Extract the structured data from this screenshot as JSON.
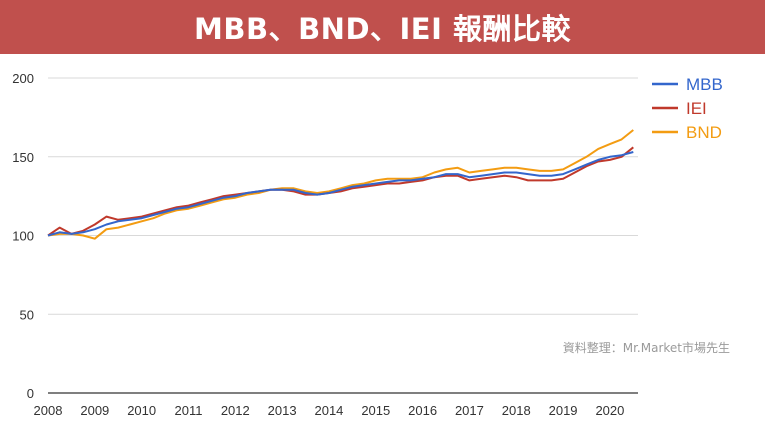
{
  "banner": {
    "title": "MBB、BND、IEI 報酬比較"
  },
  "source_note": "資料整理：Mr.Market市場先生",
  "colors": {
    "banner": "#c0504d",
    "MBB": "#3366cc",
    "IEI": "#c0392b",
    "BND": "#f39c12",
    "grid": "#d9d9d9"
  },
  "chart_data": {
    "type": "line",
    "title": "MBB、BND、IEI 報酬比較",
    "xlabel": "",
    "ylabel": "",
    "xlim": [
      2008.0,
      2020.6
    ],
    "ylim": [
      0,
      200
    ],
    "y_ticks": [
      0,
      50,
      100,
      150,
      200
    ],
    "x_ticks": [
      "2008",
      "2009",
      "2010",
      "2011",
      "2012",
      "2013",
      "2014",
      "2015",
      "2016",
      "2017",
      "2018",
      "2019",
      "2020"
    ],
    "grid": true,
    "legend_position": "top-right",
    "series": [
      {
        "name": "MBB",
        "x": [
          2008.0,
          2008.25,
          2008.5,
          2008.75,
          2009.0,
          2009.25,
          2009.5,
          2009.75,
          2010.0,
          2010.25,
          2010.5,
          2010.75,
          2011.0,
          2011.25,
          2011.5,
          2011.75,
          2012.0,
          2012.25,
          2012.5,
          2012.75,
          2013.0,
          2013.25,
          2013.5,
          2013.75,
          2014.0,
          2014.25,
          2014.5,
          2014.75,
          2015.0,
          2015.25,
          2015.5,
          2015.75,
          2016.0,
          2016.25,
          2016.5,
          2016.75,
          2017.0,
          2017.25,
          2017.5,
          2017.75,
          2018.0,
          2018.25,
          2018.5,
          2018.75,
          2019.0,
          2019.25,
          2019.5,
          2019.75,
          2020.0,
          2020.25,
          2020.5
        ],
        "y": [
          100,
          102,
          101,
          102,
          104,
          107,
          109,
          110,
          111,
          113,
          115,
          117,
          118,
          120,
          122,
          124,
          125,
          127,
          128,
          129,
          129,
          129,
          127,
          126,
          127,
          129,
          131,
          132,
          133,
          134,
          135,
          135,
          136,
          137,
          139,
          139,
          137,
          138,
          139,
          140,
          140,
          139,
          138,
          138,
          139,
          142,
          145,
          148,
          150,
          151,
          153
        ]
      },
      {
        "name": "IEI",
        "x": [
          2008.0,
          2008.25,
          2008.5,
          2008.75,
          2009.0,
          2009.25,
          2009.5,
          2009.75,
          2010.0,
          2010.25,
          2010.5,
          2010.75,
          2011.0,
          2011.25,
          2011.5,
          2011.75,
          2012.0,
          2012.25,
          2012.5,
          2012.75,
          2013.0,
          2013.25,
          2013.5,
          2013.75,
          2014.0,
          2014.25,
          2014.5,
          2014.75,
          2015.0,
          2015.25,
          2015.5,
          2015.75,
          2016.0,
          2016.25,
          2016.5,
          2016.75,
          2017.0,
          2017.25,
          2017.5,
          2017.75,
          2018.0,
          2018.25,
          2018.5,
          2018.75,
          2019.0,
          2019.25,
          2019.5,
          2019.75,
          2020.0,
          2020.25,
          2020.5
        ],
        "y": [
          100,
          105,
          101,
          103,
          107,
          112,
          110,
          111,
          112,
          114,
          116,
          118,
          119,
          121,
          123,
          125,
          126,
          127,
          128,
          129,
          129,
          128,
          126,
          126,
          127,
          128,
          130,
          131,
          132,
          133,
          133,
          134,
          135,
          137,
          138,
          138,
          135,
          136,
          137,
          138,
          137,
          135,
          135,
          135,
          136,
          140,
          144,
          147,
          148,
          150,
          156
        ]
      },
      {
        "name": "BND",
        "x": [
          2008.0,
          2008.25,
          2008.5,
          2008.75,
          2009.0,
          2009.25,
          2009.5,
          2009.75,
          2010.0,
          2010.25,
          2010.5,
          2010.75,
          2011.0,
          2011.25,
          2011.5,
          2011.75,
          2012.0,
          2012.25,
          2012.5,
          2012.75,
          2013.0,
          2013.25,
          2013.5,
          2013.75,
          2014.0,
          2014.25,
          2014.5,
          2014.75,
          2015.0,
          2015.25,
          2015.5,
          2015.75,
          2016.0,
          2016.25,
          2016.5,
          2016.75,
          2017.0,
          2017.25,
          2017.5,
          2017.75,
          2018.0,
          2018.25,
          2018.5,
          2018.75,
          2019.0,
          2019.25,
          2019.5,
          2019.75,
          2020.0,
          2020.25,
          2020.5
        ],
        "y": [
          100,
          101,
          101,
          100,
          98,
          104,
          105,
          107,
          109,
          111,
          114,
          116,
          117,
          119,
          121,
          123,
          124,
          126,
          127,
          129,
          130,
          130,
          128,
          127,
          128,
          130,
          132,
          133,
          135,
          136,
          136,
          136,
          137,
          140,
          142,
          143,
          140,
          141,
          142,
          143,
          143,
          142,
          141,
          141,
          142,
          146,
          150,
          155,
          158,
          161,
          167
        ]
      }
    ]
  }
}
